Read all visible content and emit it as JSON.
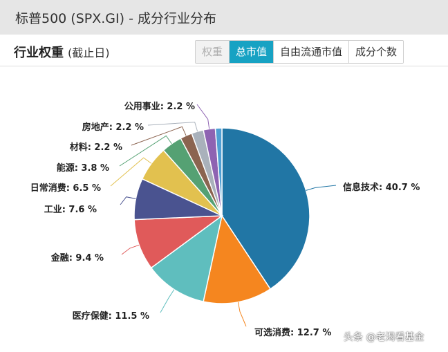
{
  "header": {
    "title": "标普500 (SPX.GI) - 成分行业分布"
  },
  "section": {
    "title": "行业权重",
    "subtitle": "(截止日)"
  },
  "tabs": [
    {
      "label": "权重",
      "state": "disabled"
    },
    {
      "label": "总市值",
      "state": "active"
    },
    {
      "label": "自由流通市值",
      "state": "normal"
    },
    {
      "label": "成分个数",
      "state": "normal"
    }
  ],
  "watermark": "头条 @老渴看基金",
  "chart_data": {
    "type": "pie",
    "unit": "%",
    "slices": [
      {
        "label": "信息技术",
        "value": 40.7,
        "color": "#2176a5"
      },
      {
        "label": "可选消费",
        "value": 12.7,
        "color": "#f5861f"
      },
      {
        "label": "医疗保健",
        "value": 11.5,
        "color": "#5fbebe"
      },
      {
        "label": "金融",
        "value": 9.4,
        "color": "#e05a5a"
      },
      {
        "label": "工业",
        "value": 7.6,
        "color": "#4a5390"
      },
      {
        "label": "日常消费",
        "value": 6.5,
        "color": "#e2c14f"
      },
      {
        "label": "能源",
        "value": 3.8,
        "color": "#55a173"
      },
      {
        "label": "材料",
        "value": 2.2,
        "color": "#8b6450"
      },
      {
        "label": "房地产",
        "value": 2.2,
        "color": "#a9b1bb"
      },
      {
        "label": "公用事业",
        "value": 2.2,
        "color": "#8e63b2"
      },
      {
        "label": "",
        "value": 1.2,
        "color": "#4f9fd3"
      }
    ]
  }
}
